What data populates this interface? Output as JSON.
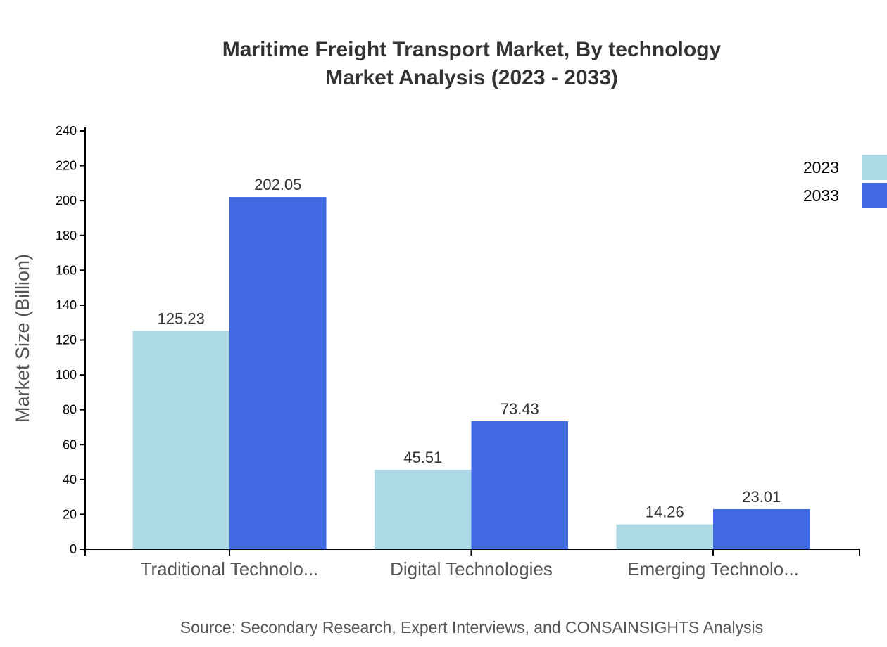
{
  "chart_data": {
    "type": "bar",
    "title": "Maritime Freight Transport Market, By technology",
    "subtitle": "Market Analysis (2023 - 2033)",
    "xlabel": "",
    "ylabel": "Market Size (Billion)",
    "ylim": [
      0,
      240
    ],
    "yticks": [
      0,
      20,
      40,
      60,
      80,
      100,
      120,
      140,
      160,
      180,
      200,
      220,
      240
    ],
    "categories": [
      "Traditional Technolo...",
      "Digital Technologies",
      "Emerging Technolo..."
    ],
    "series": [
      {
        "name": "2023",
        "color": "#add8e6",
        "values": [
          125.23,
          45.51,
          14.26
        ]
      },
      {
        "name": "2033",
        "color": "#4169e1",
        "values": [
          202.05,
          73.43,
          23.01
        ]
      }
    ],
    "legend": "top-right",
    "grid": false,
    "source": "Source: Secondary Research, Expert Interviews, and CONSAINSIGHTS Analysis"
  }
}
